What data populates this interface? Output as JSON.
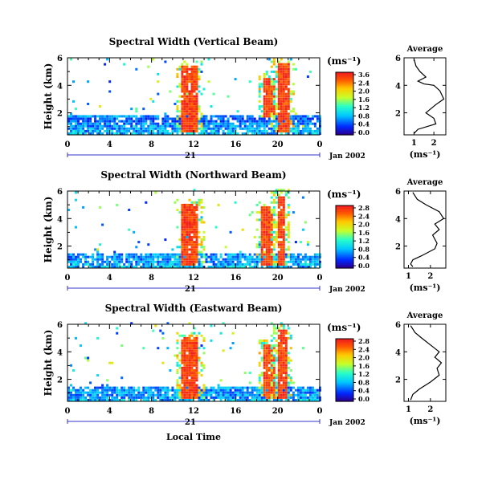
{
  "panels": [
    {
      "title": "Spectral Width (Vertical Beam)",
      "ylabel": "Height (km)",
      "yticks": [
        "6",
        "4",
        "2"
      ],
      "xticks": [
        "0",
        "4",
        "8",
        "12",
        "16",
        "20",
        "0"
      ],
      "day_label": "21",
      "date_label": "Jan 2002",
      "colorbar_unit": "(ms⁻¹)",
      "colorbar_ticks": [
        "3.6",
        "2.4",
        "2.0",
        "1.6",
        "1.2",
        "0.8",
        "0.4",
        "0.0"
      ],
      "avg_title": "Average",
      "avg_xticks": [
        "1",
        "2"
      ],
      "avg_yticks": [
        "6",
        "4",
        "2"
      ],
      "avg_unit": "(ms⁻¹)"
    },
    {
      "title": "Spectral Width (Northward Beam)",
      "ylabel": "Height (km)",
      "yticks": [
        "6",
        "4",
        "2"
      ],
      "xticks": [
        "0",
        "4",
        "8",
        "12",
        "16",
        "20",
        "0"
      ],
      "day_label": "21",
      "date_label": "Jan 2002",
      "colorbar_unit": "(ms⁻¹)",
      "colorbar_ticks": [
        "2.8",
        "2.4",
        "2.0",
        "1.6",
        "1.2",
        "0.8",
        "0.4",
        "0.0"
      ],
      "avg_title": "Average",
      "avg_xticks": [
        "1",
        "2"
      ],
      "avg_yticks": [
        "6",
        "4",
        "2"
      ],
      "avg_unit": "(ms⁻¹)"
    },
    {
      "title": "Spectral Width (Eastward Beam)",
      "ylabel": "Height (km)",
      "yticks": [
        "6",
        "4",
        "2"
      ],
      "xticks": [
        "0",
        "4",
        "8",
        "12",
        "16",
        "20",
        "0"
      ],
      "day_label": "21",
      "date_label": "Jan 2002",
      "colorbar_unit": "(ms⁻¹)",
      "colorbar_ticks": [
        "2.8",
        "2.4",
        "2.0",
        "1.6",
        "1.2",
        "0.8",
        "0.4",
        "0.0"
      ],
      "avg_title": "Average",
      "avg_xticks": [
        "1",
        "2"
      ],
      "avg_yticks": [
        "6",
        "4",
        "2"
      ],
      "avg_unit": "(ms⁻¹)"
    }
  ],
  "bottom_xlabel": "Local Time",
  "chart_data": [
    {
      "type": "heatmap",
      "title": "Spectral Width (Vertical Beam)",
      "ylabel": "Height (km)",
      "xlabel": "",
      "x_ticks": [
        "0",
        "4",
        "8",
        "12",
        "16",
        "20",
        "0"
      ],
      "ylim": [
        0.4,
        6
      ],
      "colorbar_range": [
        0.0,
        3.6
      ],
      "colorbar_unit": "ms⁻¹",
      "high_width_regions": [
        {
          "t_start": 10.8,
          "t_end": 12.2,
          "h_low": 0.5,
          "h_high": 5.3,
          "value": 3.6
        },
        {
          "t_start": 18.6,
          "t_end": 19.6,
          "h_low": 1.5,
          "h_high": 4.5,
          "value": 3.6
        },
        {
          "t_start": 19.8,
          "t_end": 21.0,
          "h_low": 0.5,
          "h_high": 5.5,
          "value": 3.6
        }
      ],
      "background_layer": {
        "h_low": 0.4,
        "h_high": 1.8,
        "value": 0.6
      }
    },
    {
      "type": "line",
      "title": "Average",
      "xlabel": "(ms⁻¹)",
      "xlim": [
        0.5,
        2.6
      ],
      "ylim": [
        0.4,
        6
      ],
      "x": [
        1.0,
        1.1,
        1.3,
        1.6,
        1.2,
        1.5,
        2.0,
        2.3,
        2.5,
        2.1,
        1.6,
        2.0,
        2.1,
        1.2,
        1.0
      ],
      "y": [
        5.9,
        5.4,
        5.0,
        4.6,
        4.3,
        4.1,
        4.0,
        3.6,
        3.0,
        2.6,
        2.0,
        1.6,
        1.2,
        0.8,
        0.5
      ]
    },
    {
      "type": "heatmap",
      "title": "Spectral Width (Northward Beam)",
      "ylabel": "Height (km)",
      "xlabel": "",
      "x_ticks": [
        "0",
        "4",
        "8",
        "12",
        "16",
        "20",
        "0"
      ],
      "ylim": [
        0.4,
        6
      ],
      "colorbar_range": [
        0.0,
        2.8
      ],
      "colorbar_unit": "ms⁻¹",
      "high_width_regions": [
        {
          "t_start": 10.8,
          "t_end": 12.4,
          "h_low": 0.5,
          "h_high": 5.0,
          "value": 2.8
        },
        {
          "t_start": 18.4,
          "t_end": 19.4,
          "h_low": 0.5,
          "h_high": 4.8,
          "value": 2.8
        },
        {
          "t_start": 19.8,
          "t_end": 20.6,
          "h_low": 0.5,
          "h_high": 5.6,
          "value": 2.8
        }
      ],
      "background_layer": {
        "h_low": 0.4,
        "h_high": 1.4,
        "value": 0.6
      }
    },
    {
      "type": "line",
      "title": "Average",
      "xlabel": "(ms⁻¹)",
      "xlim": [
        0.8,
        2.7
      ],
      "ylim": [
        0.4,
        6
      ],
      "x": [
        1.2,
        1.4,
        1.8,
        2.4,
        2.6,
        2.2,
        2.4,
        2.1,
        2.3,
        2.2,
        1.6,
        1.2,
        1.1,
        1.2
      ],
      "y": [
        5.9,
        5.4,
        5.0,
        4.5,
        4.0,
        3.6,
        3.2,
        2.8,
        2.2,
        1.8,
        1.3,
        1.0,
        0.7,
        0.5
      ]
    },
    {
      "type": "heatmap",
      "title": "Spectral Width (Eastward Beam)",
      "ylabel": "Height (km)",
      "xlabel": "Local Time",
      "x_ticks": [
        "0",
        "4",
        "8",
        "12",
        "16",
        "20",
        "0"
      ],
      "ylim": [
        0.4,
        6
      ],
      "colorbar_range": [
        0.0,
        2.8
      ],
      "colorbar_unit": "ms⁻¹",
      "high_width_regions": [
        {
          "t_start": 10.8,
          "t_end": 12.4,
          "h_low": 0.5,
          "h_high": 5.0,
          "value": 2.8
        },
        {
          "t_start": 18.6,
          "t_end": 19.6,
          "h_low": 0.5,
          "h_high": 4.5,
          "value": 2.8
        },
        {
          "t_start": 19.8,
          "t_end": 20.8,
          "h_low": 0.5,
          "h_high": 5.6,
          "value": 2.8
        }
      ],
      "background_layer": {
        "h_low": 0.4,
        "h_high": 1.3,
        "value": 0.6
      }
    },
    {
      "type": "line",
      "title": "Average",
      "xlabel": "(ms⁻¹)",
      "xlim": [
        0.8,
        2.7
      ],
      "ylim": [
        0.4,
        6
      ],
      "x": [
        1.1,
        1.3,
        1.6,
        2.0,
        2.4,
        2.2,
        2.5,
        2.3,
        2.4,
        2.0,
        1.5,
        1.2,
        1.1
      ],
      "y": [
        5.9,
        5.4,
        5.0,
        4.5,
        4.0,
        3.6,
        3.2,
        2.8,
        2.3,
        1.8,
        1.3,
        0.9,
        0.5
      ]
    }
  ]
}
